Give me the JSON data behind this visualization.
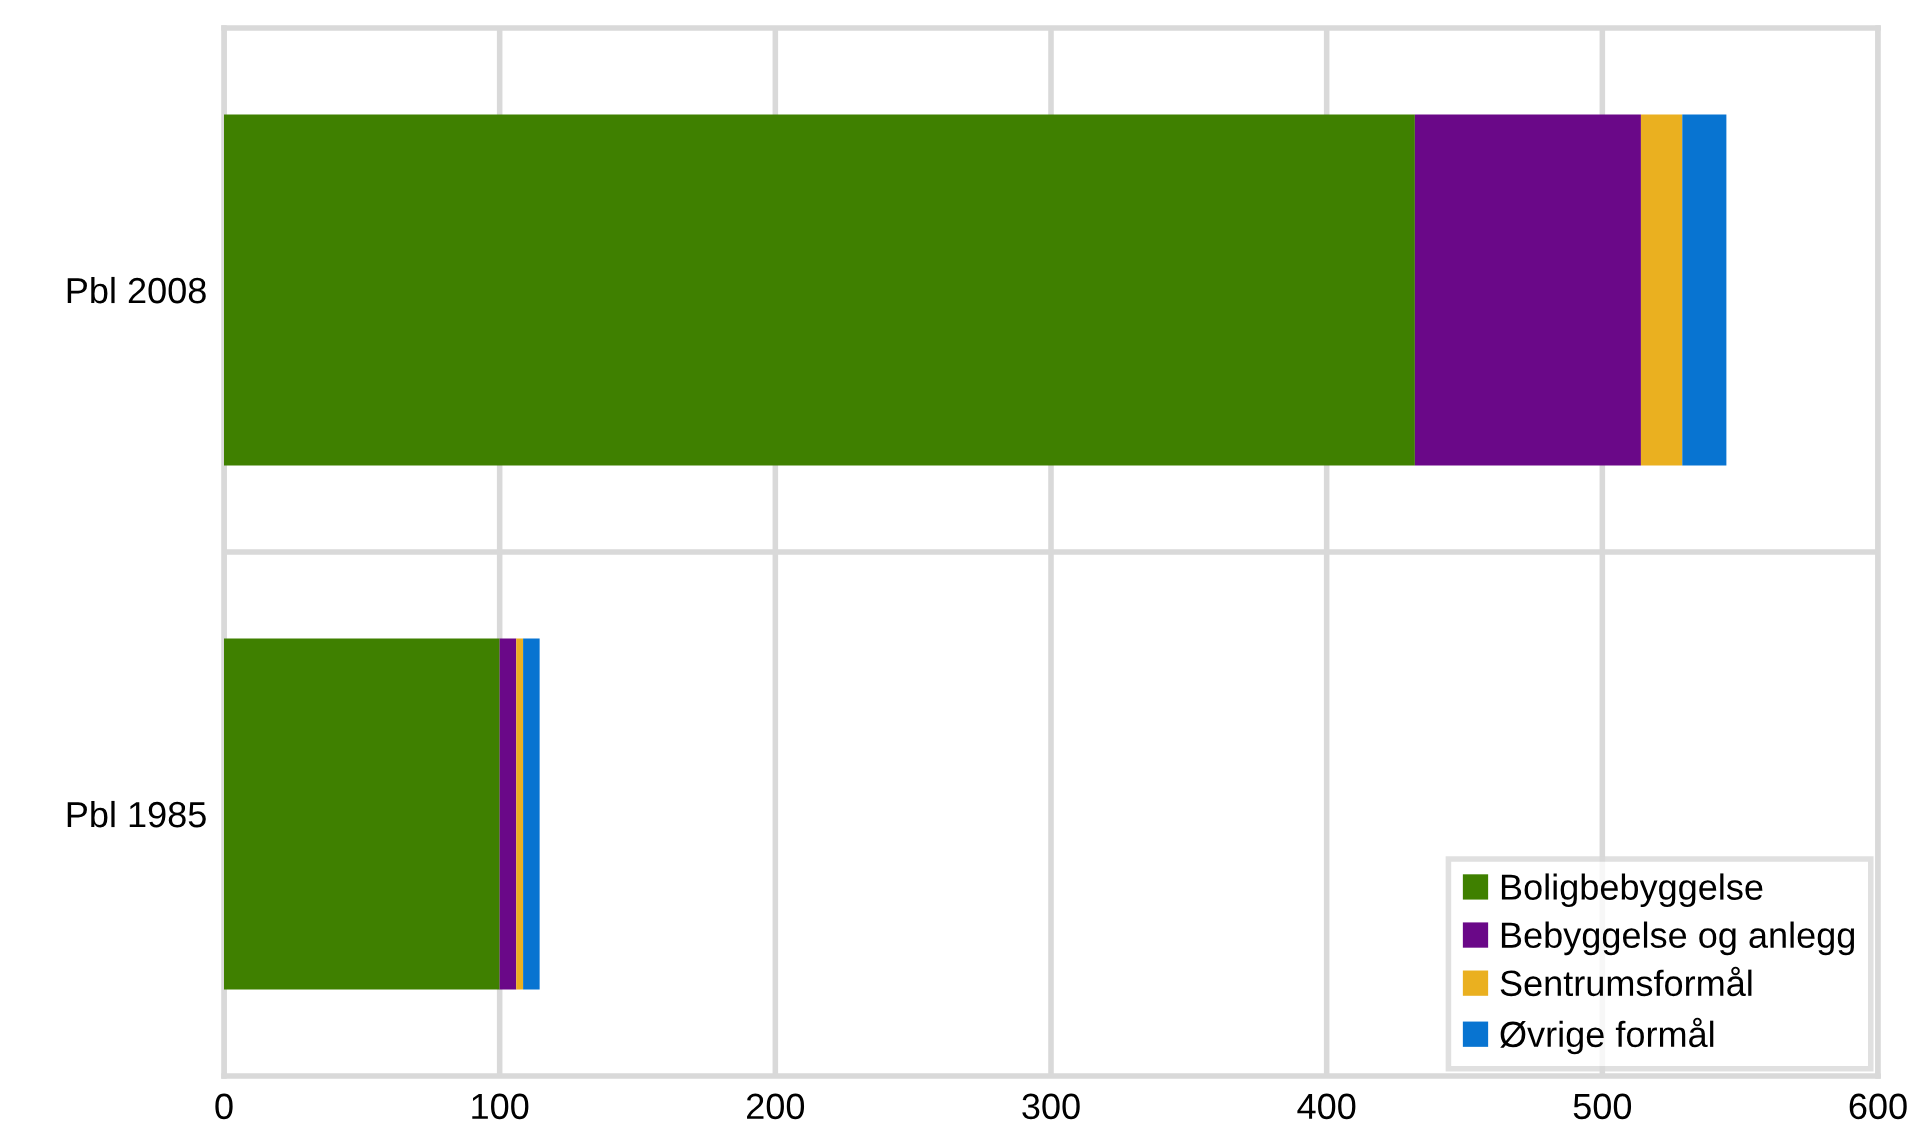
{
  "chart_data": {
    "type": "bar",
    "orientation": "horizontal",
    "stacked": true,
    "categories": [
      "Pbl 2008",
      "Pbl 1985"
    ],
    "series": [
      {
        "name": "Boligbebyggelse",
        "color": "#3f8000",
        "values": [
          432,
          100
        ]
      },
      {
        "name": "Bebyggelse og anlegg",
        "color": "#6a0888",
        "values": [
          82,
          6
        ]
      },
      {
        "name": "Sentrumsformål",
        "color": "#eab020",
        "values": [
          15,
          2.5
        ]
      },
      {
        "name": "Øvrige formål",
        "color": "#0874d1",
        "values": [
          16,
          6
        ]
      }
    ],
    "xlim": [
      0,
      600
    ],
    "xticks": [
      0,
      100,
      200,
      300,
      400,
      500,
      600
    ],
    "grid": true,
    "legend": "bottom right"
  }
}
